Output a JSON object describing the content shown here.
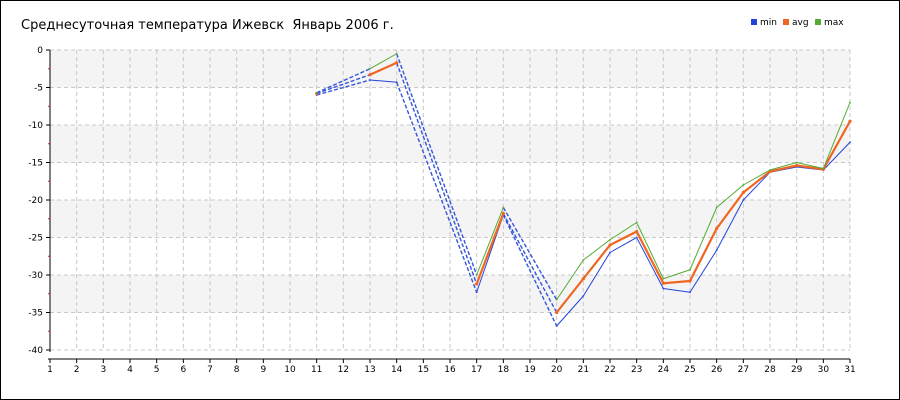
{
  "chart_data": {
    "type": "line",
    "title": "Среднесуточная температура Ижевск  Январь 2006 г.",
    "xlabel": "",
    "ylabel": "",
    "x_ticks": [
      1,
      2,
      3,
      4,
      5,
      6,
      7,
      8,
      9,
      10,
      11,
      12,
      13,
      14,
      15,
      16,
      17,
      18,
      19,
      20,
      21,
      22,
      23,
      24,
      25,
      26,
      27,
      28,
      29,
      30,
      31
    ],
    "y_ticks": [
      0,
      -5,
      -10,
      -15,
      -20,
      -25,
      -30,
      -35,
      -40
    ],
    "xlim": [
      1,
      31
    ],
    "ylim": [
      -40,
      0
    ],
    "grid": true,
    "legend_position": "top-right",
    "series": [
      {
        "name": "min",
        "color": "#2244dd",
        "x": [
          11,
          13,
          14,
          17,
          18,
          20,
          21,
          22,
          23,
          24,
          25,
          26,
          27,
          28,
          29,
          30,
          31
        ],
        "values": [
          -6.0,
          -4.0,
          -4.3,
          -32.3,
          -22.0,
          -36.8,
          -32.8,
          -27.0,
          -25.0,
          -31.8,
          -32.3,
          -26.7,
          -20.0,
          -16.3,
          -15.6,
          -16.0,
          -12.3
        ]
      },
      {
        "name": "avg",
        "color": "#ee6622",
        "x": [
          11,
          13,
          14,
          17,
          18,
          20,
          21,
          22,
          23,
          24,
          25,
          26,
          27,
          28,
          29,
          30,
          31
        ],
        "values": [
          -5.8,
          -3.3,
          -1.7,
          -31.2,
          -21.8,
          -35.0,
          -30.5,
          -26.0,
          -24.2,
          -31.1,
          -30.8,
          -23.8,
          -19.0,
          -16.2,
          -15.4,
          -15.9,
          -9.5
        ]
      },
      {
        "name": "max",
        "color": "#55aa33",
        "x": [
          11,
          13,
          14,
          17,
          18,
          20,
          21,
          22,
          23,
          24,
          25,
          26,
          27,
          28,
          29,
          30,
          31
        ],
        "values": [
          -5.7,
          -2.5,
          -0.5,
          -30.0,
          -21.0,
          -33.3,
          -28.0,
          -25.3,
          -23.0,
          -30.5,
          -29.3,
          -21.0,
          -18.0,
          -16.0,
          -15.0,
          -15.8,
          -7.0
        ]
      }
    ],
    "dashed_connections": [
      [
        14,
        17
      ],
      [
        18,
        20
      ]
    ]
  }
}
